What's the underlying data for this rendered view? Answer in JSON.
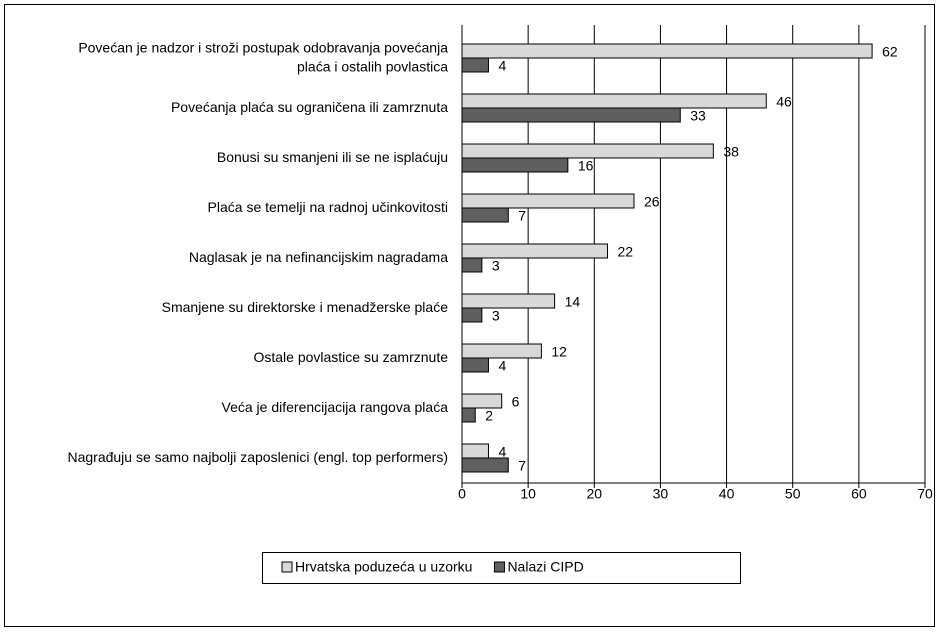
{
  "chart_data": {
    "type": "bar",
    "orientation": "horizontal",
    "categories": [
      "Povećan je nadzor i stroži postupak odobravanja povećanja plaća i ostalih povlastica",
      "Povećanja plaća su ograničena ili zamrznuta",
      "Bonusi su smanjeni ili se ne isplaćuju",
      "Plaća se temelji na radnoj učinkovitosti",
      "Naglasak je na nefinancijskim nagradama",
      "Smanjene su direktorske i menadžerske plaće",
      "Ostale povlastice su zamrznute",
      "Veća je diferencijacija rangova plaća",
      "Nagrađuju se samo najbolji zaposlenici (engl. top performers)"
    ],
    "series": [
      {
        "name": "Hrvatska poduzeća u uzorku",
        "color": "#d9d9d9",
        "values": [
          62,
          46,
          38,
          26,
          22,
          14,
          12,
          6,
          4
        ]
      },
      {
        "name": "Nalazi CIPD",
        "color": "#5f5f5f",
        "values": [
          4,
          33,
          16,
          7,
          3,
          3,
          4,
          2,
          7
        ]
      }
    ],
    "xlim": [
      0,
      70
    ],
    "xticks": [
      0,
      10,
      20,
      30,
      40,
      50,
      60,
      70
    ],
    "grid": true,
    "legend": "bottom"
  }
}
